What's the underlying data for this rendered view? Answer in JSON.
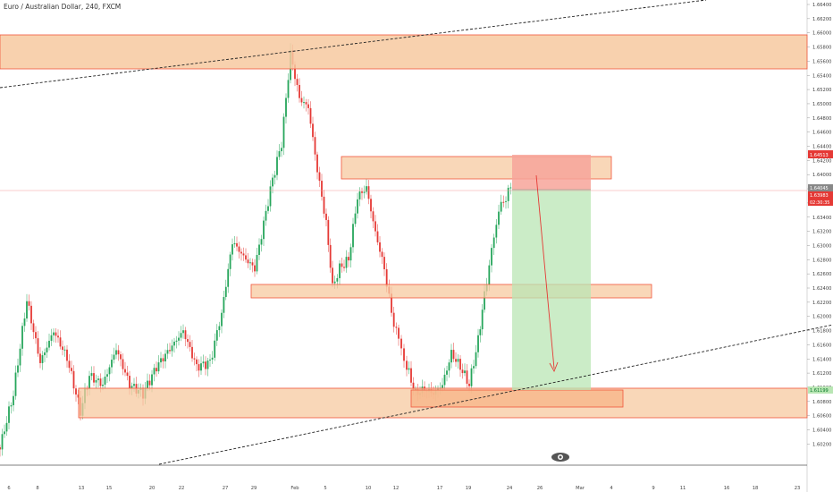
{
  "header": {
    "symbol_title": "Euro / Australian Dollar, 240, FXCM"
  },
  "price_axis": {
    "labels": [
      "1.66400",
      "1.66200",
      "1.66000",
      "1.65800",
      "1.65600",
      "1.65400",
      "1.65200",
      "1.65000",
      "1.64800",
      "1.64600",
      "1.64400",
      "1.64200",
      "1.64000",
      "1.63800",
      "1.63600",
      "1.63400",
      "1.63200",
      "1.63000",
      "1.62800",
      "1.62600",
      "1.62400",
      "1.62200",
      "1.62000",
      "1.61800",
      "1.61600",
      "1.61400",
      "1.61200",
      "1.61000",
      "1.60800",
      "1.60600",
      "1.60400",
      "1.60200"
    ],
    "badges": {
      "target_price": "1.64513",
      "entry_price": "1.64045",
      "last_price": "1.63983",
      "countdown": "02:30:35",
      "stop_price": "1.61199"
    }
  },
  "time_axis": {
    "labels": [
      "6",
      "8",
      "13",
      "15",
      "20",
      "22",
      "27",
      "29",
      "Feb",
      "5",
      "10",
      "12",
      "17",
      "19",
      "24",
      "26",
      "Mar",
      "4",
      "9",
      "11",
      "16",
      "18",
      "23"
    ]
  },
  "colors": {
    "zone_fill": "#f7c9a0",
    "zone_border": "#f0553b",
    "bull_candle": "#26a65b",
    "bear_candle": "#e53935",
    "target_fill": "#b9e6b4",
    "stop_fill": "#f7a49a",
    "trendline": "#222222"
  },
  "icons": {
    "bottom_logo": "tradingview-logo-icon"
  }
}
